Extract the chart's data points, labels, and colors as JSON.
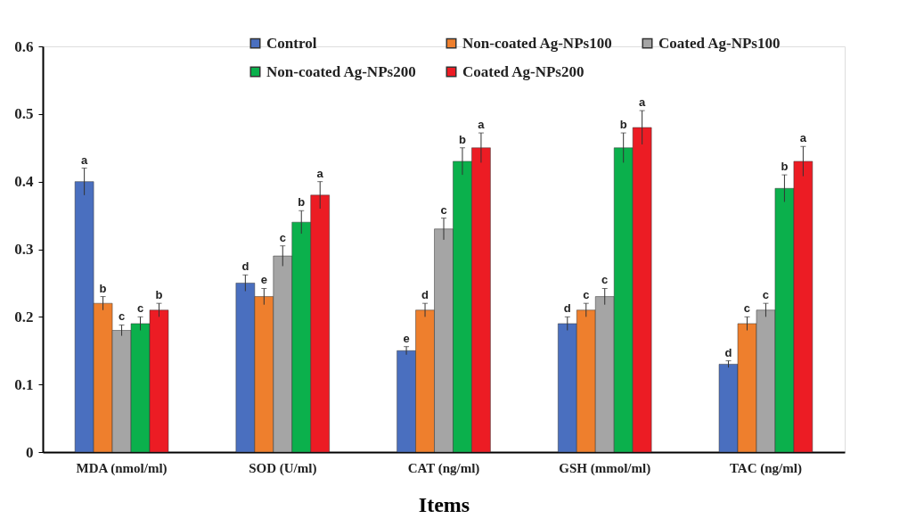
{
  "chart_data": {
    "type": "bar",
    "xlabel": "Items",
    "categories": [
      "MDA (nmol/ml)",
      "SOD (U/ml)",
      "CAT (ng/ml)",
      "GSH (mmol/ml)",
      "TAC (ng/ml)"
    ],
    "ylim": [
      0,
      0.6
    ],
    "yticks": [
      0,
      0.1,
      0.2,
      0.3,
      0.4,
      0.5,
      0.6
    ],
    "grid": false,
    "legend": "top",
    "series": [
      {
        "name": "Control",
        "color": "#4a6fbf",
        "values": [
          0.4,
          0.25,
          0.15,
          0.19,
          0.13
        ],
        "errors": [
          0.02,
          0.012,
          0.006,
          0.01,
          0.005
        ],
        "value_labels": [
          "a",
          "d",
          "e",
          "d",
          "d"
        ]
      },
      {
        "name": "Non-coated Ag-NPs100",
        "color": "#ee7f2d",
        "values": [
          0.22,
          0.23,
          0.21,
          0.21,
          0.19
        ],
        "errors": [
          0.01,
          0.012,
          0.01,
          0.01,
          0.01
        ],
        "value_labels": [
          "b",
          "e",
          "d",
          "c",
          "c"
        ]
      },
      {
        "name": "Coated Ag-NPs100",
        "color": "#a5a5a5",
        "values": [
          0.18,
          0.29,
          0.33,
          0.23,
          0.21
        ],
        "errors": [
          0.008,
          0.015,
          0.016,
          0.012,
          0.01
        ],
        "value_labels": [
          "c",
          "c",
          "c",
          "c",
          "c"
        ]
      },
      {
        "name": "Non-coated Ag-NPs200",
        "color": "#0bb04c",
        "values": [
          0.19,
          0.34,
          0.43,
          0.45,
          0.39
        ],
        "errors": [
          0.01,
          0.017,
          0.02,
          0.022,
          0.02
        ],
        "value_labels": [
          "c",
          "b",
          "b",
          "b",
          "b"
        ]
      },
      {
        "name": "Coated Ag-NPs200",
        "color": "#ec1c24",
        "values": [
          0.21,
          0.38,
          0.45,
          0.48,
          0.43
        ],
        "errors": [
          0.01,
          0.02,
          0.022,
          0.025,
          0.022
        ],
        "value_labels": [
          "b",
          "a",
          "a",
          "a",
          "a"
        ]
      }
    ]
  }
}
